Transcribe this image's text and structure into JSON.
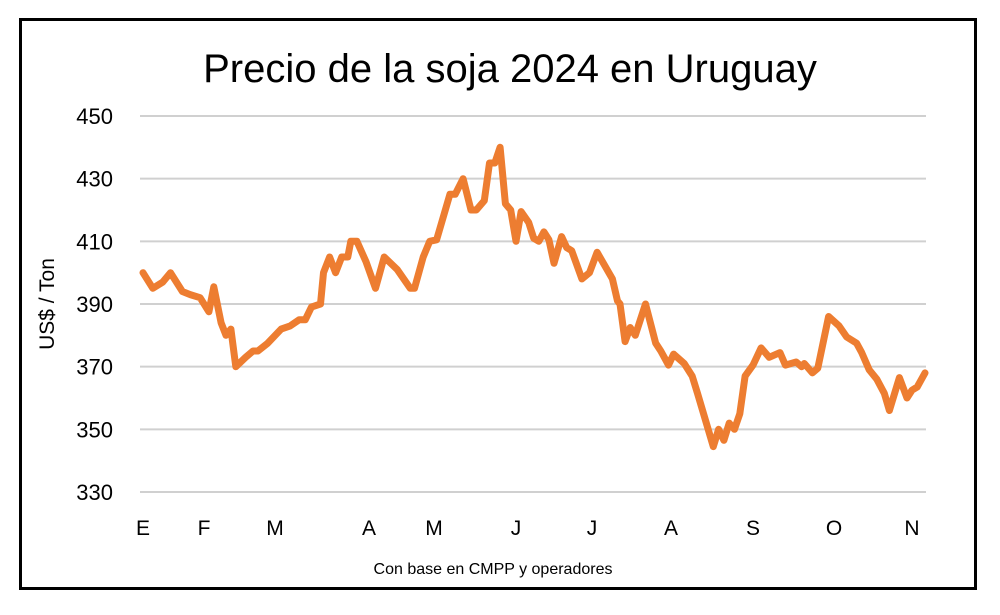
{
  "chart_data": {
    "type": "line",
    "title": "Precio de la soja 2024 en Uruguay",
    "ylabel": "US$ / Ton",
    "xlabel": "",
    "footnote": "Con base en CMPP y operadores",
    "ylim": [
      330,
      450
    ],
    "yticks": [
      450,
      430,
      410,
      390,
      370,
      350,
      330
    ],
    "xtick_labels": [
      "E",
      "F",
      "M",
      "A",
      "M",
      "J",
      "J",
      "A",
      "S",
      "O",
      "N"
    ],
    "grid": "horizontal",
    "legend": "none",
    "line_color": "#ED7D31",
    "series": [
      {
        "points": [
          [
            "2024-01-01",
            400
          ],
          [
            "2024-01-06",
            395
          ],
          [
            "2024-01-11",
            397
          ],
          [
            "2024-01-15",
            400
          ],
          [
            "2024-01-21",
            394
          ],
          [
            "2024-01-25",
            393
          ],
          [
            "2024-01-30",
            392
          ],
          [
            "2024-02-03",
            387.5
          ],
          [
            "2024-02-05",
            395.5
          ],
          [
            "2024-02-08",
            384
          ],
          [
            "2024-02-10",
            380
          ],
          [
            "2024-02-12",
            382
          ],
          [
            "2024-02-14",
            370
          ],
          [
            "2024-02-18",
            373
          ],
          [
            "2024-02-21",
            375
          ],
          [
            "2024-02-23",
            375
          ],
          [
            "2024-02-27",
            377.5
          ],
          [
            "2024-03-03",
            382
          ],
          [
            "2024-03-06",
            383
          ],
          [
            "2024-03-09",
            385
          ],
          [
            "2024-03-11",
            385
          ],
          [
            "2024-03-13",
            389
          ],
          [
            "2024-03-16",
            390
          ],
          [
            "2024-03-17",
            400
          ],
          [
            "2024-03-19",
            405
          ],
          [
            "2024-03-21",
            400
          ],
          [
            "2024-03-23",
            405
          ],
          [
            "2024-03-25",
            405
          ],
          [
            "2024-03-26",
            410
          ],
          [
            "2024-03-28",
            410
          ],
          [
            "2024-03-31",
            403.5
          ],
          [
            "2024-04-04",
            395
          ],
          [
            "2024-04-08",
            405
          ],
          [
            "2024-04-14",
            401
          ],
          [
            "2024-04-20",
            395
          ],
          [
            "2024-04-22",
            395
          ],
          [
            "2024-04-26",
            405
          ],
          [
            "2024-04-29",
            410
          ],
          [
            "2024-05-02",
            410.5
          ],
          [
            "2024-05-07",
            425
          ],
          [
            "2024-05-09",
            425
          ],
          [
            "2024-05-12",
            430
          ],
          [
            "2024-05-15",
            420
          ],
          [
            "2024-05-17",
            420
          ],
          [
            "2024-05-20",
            423
          ],
          [
            "2024-05-22",
            435
          ],
          [
            "2024-05-24",
            435
          ],
          [
            "2024-05-26",
            440
          ],
          [
            "2024-05-28",
            422
          ],
          [
            "2024-05-30",
            420
          ],
          [
            "2024-06-01",
            410
          ],
          [
            "2024-06-03",
            419.5
          ],
          [
            "2024-06-06",
            416
          ],
          [
            "2024-06-08",
            411
          ],
          [
            "2024-06-10",
            410
          ],
          [
            "2024-06-12",
            413
          ],
          [
            "2024-06-14",
            410.5
          ],
          [
            "2024-06-16",
            403
          ],
          [
            "2024-06-19",
            411.5
          ],
          [
            "2024-06-21",
            408
          ],
          [
            "2024-06-23",
            407
          ],
          [
            "2024-06-27",
            398
          ],
          [
            "2024-06-30",
            400
          ],
          [
            "2024-07-03",
            406.5
          ],
          [
            "2024-07-09",
            398
          ],
          [
            "2024-07-11",
            391
          ],
          [
            "2024-07-12",
            390
          ],
          [
            "2024-07-14",
            378
          ],
          [
            "2024-07-16",
            382.5
          ],
          [
            "2024-07-18",
            380
          ],
          [
            "2024-07-22",
            390
          ],
          [
            "2024-07-26",
            377.5
          ],
          [
            "2024-07-28",
            375
          ],
          [
            "2024-07-31",
            370.5
          ],
          [
            "2024-08-02",
            374
          ],
          [
            "2024-08-06",
            371
          ],
          [
            "2024-08-09",
            367
          ],
          [
            "2024-08-11",
            361.5
          ],
          [
            "2024-08-17",
            344.5
          ],
          [
            "2024-08-19",
            350
          ],
          [
            "2024-08-21",
            346.5
          ],
          [
            "2024-08-23",
            352
          ],
          [
            "2024-08-25",
            350
          ],
          [
            "2024-08-27",
            355
          ],
          [
            "2024-08-29",
            367
          ],
          [
            "2024-09-01",
            370.5
          ],
          [
            "2024-09-04",
            376
          ],
          [
            "2024-09-07",
            373
          ],
          [
            "2024-09-11",
            374.5
          ],
          [
            "2024-09-13",
            370.5
          ],
          [
            "2024-09-17",
            371.5
          ],
          [
            "2024-09-19",
            370
          ],
          [
            "2024-09-20",
            371
          ],
          [
            "2024-09-23",
            368
          ],
          [
            "2024-09-25",
            369.5
          ],
          [
            "2024-09-29",
            386
          ],
          [
            "2024-10-03",
            383
          ],
          [
            "2024-10-06",
            379.5
          ],
          [
            "2024-10-10",
            377.5
          ],
          [
            "2024-10-12",
            374.5
          ],
          [
            "2024-10-15",
            369
          ],
          [
            "2024-10-18",
            366
          ],
          [
            "2024-10-21",
            361.5
          ],
          [
            "2024-10-23",
            356
          ],
          [
            "2024-10-27",
            366.5
          ],
          [
            "2024-10-30",
            360
          ],
          [
            "2024-11-01",
            362.5
          ],
          [
            "2024-11-03",
            363.5
          ],
          [
            "2024-11-06",
            368
          ]
        ]
      }
    ]
  }
}
